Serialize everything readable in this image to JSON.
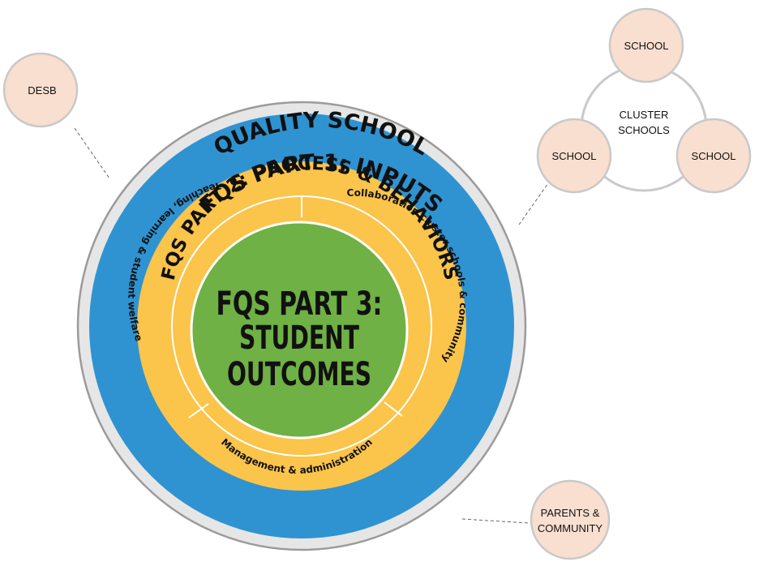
{
  "colors": {
    "outer_ring": "#e6e6e6",
    "outer_ring_border": "#9b9b9b",
    "inputs_ring": "#2f93d1",
    "process_ring": "#fbc44a",
    "outcomes_core": "#6fb144",
    "node_fill": "#f9dfcf",
    "node_border": "#c9c9c9",
    "connector": "#666666",
    "cluster_ring": "#c9c9c9"
  },
  "rings": {
    "outer_title": "QUALITY SCHOOL",
    "inputs_title": "FQS PART 1: INPUTS",
    "process_title": "FQS PART 2: PROCESS & BEHAVIORS",
    "segment_left": "Teaching, learning  & student welfare",
    "segment_right": "Collaboration cluster schools & community",
    "segment_bottom": "Management & administration"
  },
  "core": {
    "line1": "FQS PART 3:",
    "line2": "STUDENT",
    "line3": "OUTCOMES"
  },
  "nodes": {
    "desb": "DESB",
    "parents_line1": "PARENTS &",
    "parents_line2": "COMMUNITY",
    "cluster_label_line1": "CLUSTER",
    "cluster_label_line2": "SCHOOLS",
    "school_top": "SCHOOL",
    "school_left": "SCHOOL",
    "school_right": "SCHOOL"
  }
}
